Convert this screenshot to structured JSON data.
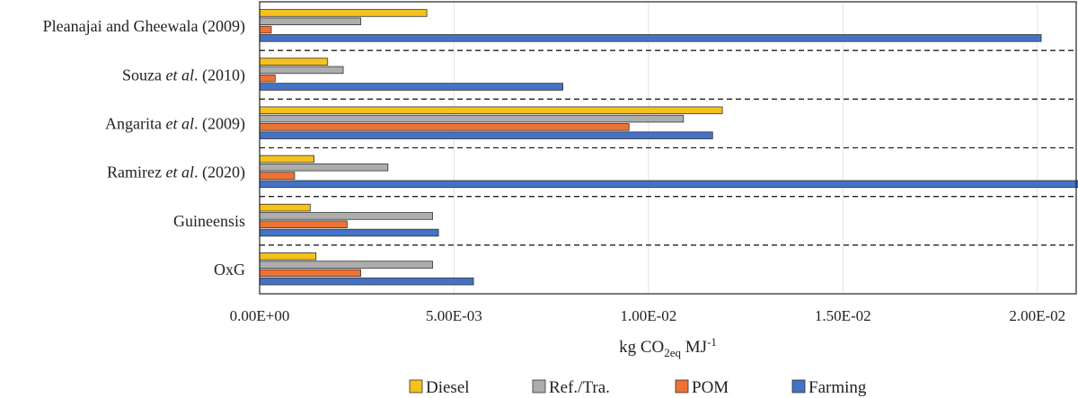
{
  "chart_data": {
    "type": "bar",
    "orientation": "horizontal",
    "categories": [
      {
        "parts": [
          {
            "t": "Pleanajai and Gheewala (2009)",
            "i": false
          }
        ]
      },
      {
        "parts": [
          {
            "t": "Souza ",
            "i": false
          },
          {
            "t": "et al",
            "i": true
          },
          {
            "t": ". (2010)",
            "i": false
          }
        ]
      },
      {
        "parts": [
          {
            "t": "Angarita ",
            "i": false
          },
          {
            "t": "et al",
            "i": true
          },
          {
            "t": ". (2009)",
            "i": false
          }
        ]
      },
      {
        "parts": [
          {
            "t": "Ramirez ",
            "i": false
          },
          {
            "t": "et al",
            "i": true
          },
          {
            "t": ". (2020)",
            "i": false
          }
        ]
      },
      {
        "parts": [
          {
            "t": "Guineensis",
            "i": false
          }
        ]
      },
      {
        "parts": [
          {
            "t": "OxG",
            "i": false
          }
        ]
      }
    ],
    "series": [
      {
        "name": "Diesel",
        "color": "#F5C11B",
        "values": [
          0.0043,
          0.00175,
          0.0119,
          0.0014,
          0.0013,
          0.00145
        ]
      },
      {
        "name": "Ref./Tra.",
        "color": "#ADADAD",
        "values": [
          0.0026,
          0.00215,
          0.0109,
          0.0033,
          0.00445,
          0.00445
        ]
      },
      {
        "name": "POM",
        "color": "#EE7234",
        "values": [
          0.0003,
          0.0004,
          0.0095,
          0.0009,
          0.00225,
          0.0026
        ]
      },
      {
        "name": "Farming",
        "color": "#4472C4",
        "values": [
          0.0201,
          0.0078,
          0.01165,
          0.0211,
          0.0046,
          0.0055
        ]
      }
    ],
    "x_ticks": [
      {
        "value": 0,
        "label": "0.00E+00"
      },
      {
        "value": 0.005,
        "label": "5.00E-03"
      },
      {
        "value": 0.01,
        "label": "1.00E-02"
      },
      {
        "value": 0.015,
        "label": "1.50E-02"
      },
      {
        "value": 0.02,
        "label": "2.00E-02"
      }
    ],
    "xlim": [
      0,
      0.021
    ],
    "xlabel": {
      "main": "kg CO",
      "sub": "2eq",
      "unit": " MJ",
      "sup": "-1"
    },
    "legend_placement": "bottom",
    "grid": "vertical"
  }
}
